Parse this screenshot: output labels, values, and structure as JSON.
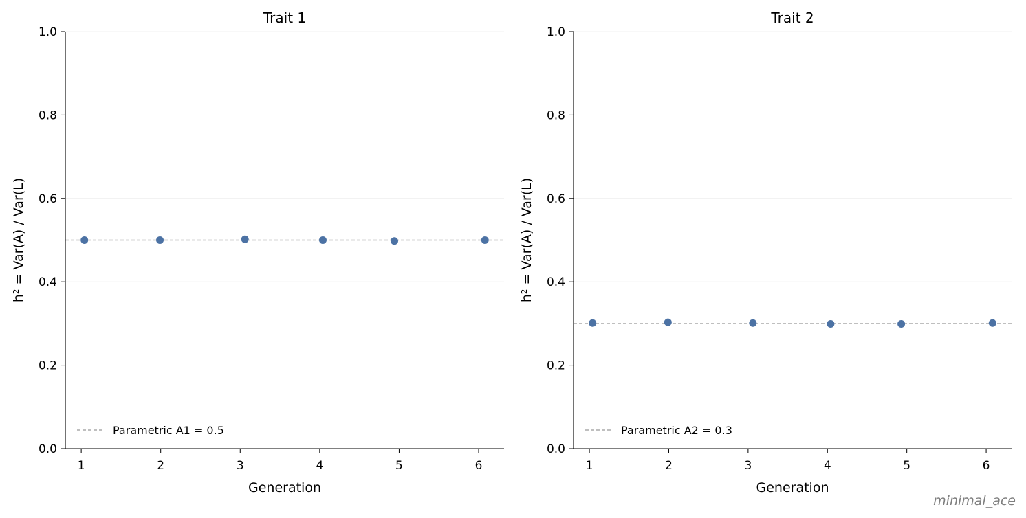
{
  "figure": {
    "watermark": "minimal_ace"
  },
  "chart_data": [
    {
      "type": "scatter",
      "title": "Trait 1",
      "xlabel": "Generation",
      "ylabel": "h² = Var(A) / Var(L)",
      "xlim": [
        0.8,
        6.32
      ],
      "ylim": [
        0.0,
        1.0
      ],
      "x_ticks": [
        "1",
        "2",
        "3",
        "4",
        "5",
        "6"
      ],
      "y_ticks": [
        "0.0",
        "0.2",
        "0.4",
        "0.6",
        "0.8",
        "1.0"
      ],
      "grid": "horizontal",
      "legend_position": "lower-left",
      "series": [
        {
          "x": [
            1.04,
            1.99,
            3.06,
            4.04,
            4.94,
            6.08
          ],
          "y": [
            0.5,
            0.5,
            0.502,
            0.5,
            0.498,
            0.5
          ],
          "color": "#4c72a4"
        }
      ],
      "reference_line": {
        "label": "Parametric A1 = 0.5",
        "y": 0.5,
        "color": "#aaaaaa",
        "style": "dashed"
      }
    },
    {
      "type": "scatter",
      "title": "Trait 2",
      "xlabel": "Generation",
      "ylabel": "h² = Var(A) / Var(L)",
      "xlim": [
        0.8,
        6.32
      ],
      "ylim": [
        0.0,
        1.0
      ],
      "x_ticks": [
        "1",
        "2",
        "3",
        "4",
        "5",
        "6"
      ],
      "y_ticks": [
        "0.0",
        "0.2",
        "0.4",
        "0.6",
        "0.8",
        "1.0"
      ],
      "grid": "horizontal",
      "legend_position": "lower-left",
      "series": [
        {
          "x": [
            1.04,
            1.99,
            3.06,
            4.04,
            4.93,
            6.08
          ],
          "y": [
            0.301,
            0.303,
            0.301,
            0.299,
            0.299,
            0.301
          ],
          "color": "#4c72a4"
        }
      ],
      "reference_line": {
        "label": "Parametric A2 = 0.3",
        "y": 0.3,
        "color": "#aaaaaa",
        "style": "dashed"
      }
    }
  ]
}
